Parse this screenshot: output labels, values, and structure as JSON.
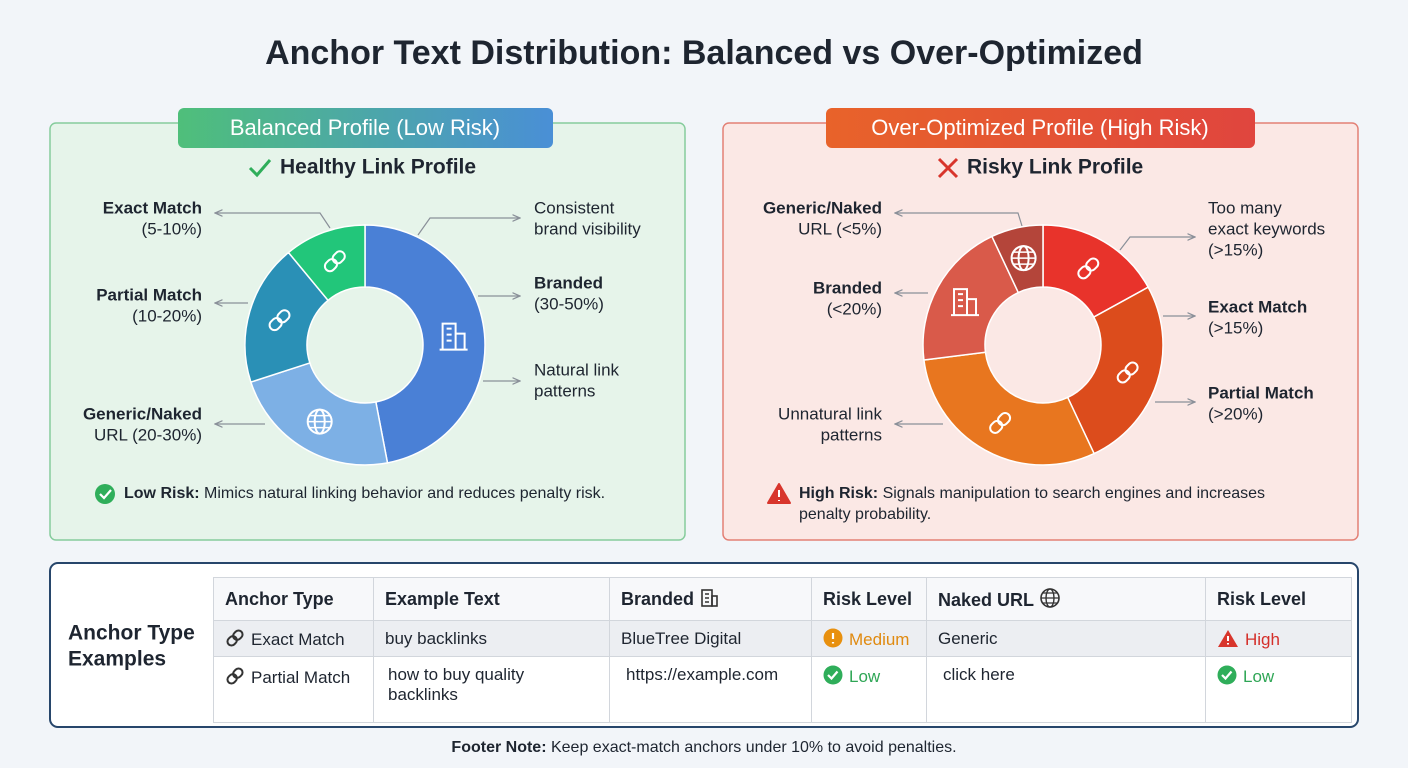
{
  "title": "Anchor Text Distribution: Balanced vs Over-Optimized",
  "panels": [
    {
      "badge": "Balanced Profile (Low Risk)",
      "heading": "Healthy Link Profile",
      "callouts": [
        [
          "Exact Match",
          "(5-10%)"
        ],
        [
          "Partial Match",
          "(10-20%)"
        ],
        [
          "Generic/Naked",
          "URL (20-30%)"
        ],
        [
          "Consistent",
          "brand visibility"
        ],
        [
          "Branded",
          "(30-50%)"
        ],
        [
          "Natural link",
          "patterns"
        ]
      ],
      "note_label": "Low Risk:",
      "note_text": [
        "Mimics natural linking behavior and reduces penalty risk."
      ]
    },
    {
      "badge": "Over-Optimized Profile (High Risk)",
      "heading": "Risky Link Profile",
      "callouts": [
        [
          "Generic/Naked",
          "URL (<5%)"
        ],
        [
          "Branded",
          "(<20%)"
        ],
        [
          "Unnatural link",
          "patterns"
        ],
        [
          "Too many",
          "exact keywords",
          "(>15%)"
        ],
        [
          "Exact Match",
          "(>15%)"
        ],
        [
          "Partial Match",
          "(>20%)"
        ]
      ],
      "note_label": "High Risk:",
      "note_text": [
        "Signals manipulation to search engines and increases",
        "penalty probability."
      ]
    }
  ],
  "chart_data": [
    {
      "type": "donut",
      "values": [
        47,
        23,
        19,
        11
      ],
      "colors": [
        "#4a80d6",
        "#7db0e5",
        "#2a90b6",
        "#22c67a"
      ]
    },
    {
      "type": "donut",
      "values": [
        17,
        26,
        30,
        20,
        7
      ],
      "colors": [
        "#e8332b",
        "#dc4c1c",
        "#e8761f",
        "#d95a4a",
        "#b4453a"
      ]
    }
  ],
  "table": {
    "label": [
      "Anchor Type",
      "Examples"
    ],
    "headers": [
      "Anchor Type",
      "Example Text",
      "Branded",
      "Risk Level",
      "Naked URL",
      "Risk Level"
    ],
    "rows": [
      [
        "Exact Match",
        "buy backlinks",
        "BlueTree Digital",
        "Medium",
        "Generic",
        "High"
      ],
      [
        "Partial Match",
        "how to buy quality backlinks",
        "https://example.com",
        "Low",
        "click here",
        "Low"
      ]
    ]
  },
  "footer": {
    "label": "Footer Note:",
    "text": "Keep exact-match anchors under 10% to avoid penalties."
  }
}
